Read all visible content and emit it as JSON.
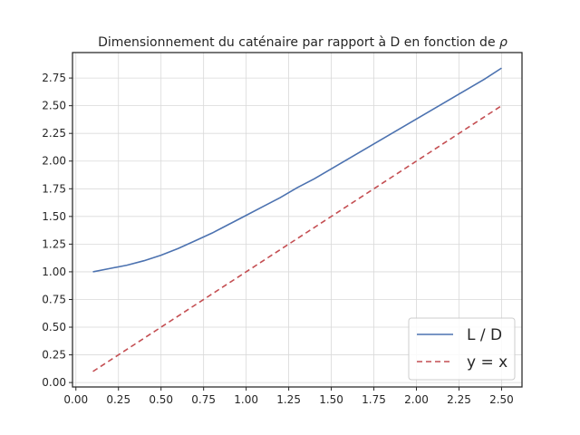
{
  "chart_data": {
    "type": "line",
    "title": "Dimensionnement du caténaire par rapport à D en fonction de ",
    "title_symbol": "ρ",
    "xlabel": "",
    "ylabel": "",
    "xlim": [
      -0.02,
      2.62
    ],
    "ylim": [
      -0.04,
      2.98
    ],
    "xticks": [
      0.0,
      0.25,
      0.5,
      0.75,
      1.0,
      1.25,
      1.5,
      1.75,
      2.0,
      2.25,
      2.5
    ],
    "xtick_labels": [
      "0.00",
      "0.25",
      "0.50",
      "0.75",
      "1.00",
      "1.25",
      "1.50",
      "1.75",
      "2.00",
      "2.25",
      "2.50"
    ],
    "yticks": [
      0.0,
      0.25,
      0.5,
      0.75,
      1.0,
      1.25,
      1.5,
      1.75,
      2.0,
      2.25,
      2.5,
      2.75
    ],
    "ytick_labels": [
      "0.00",
      "0.25",
      "0.50",
      "0.75",
      "1.00",
      "1.25",
      "1.50",
      "1.75",
      "2.00",
      "2.25",
      "2.50",
      "2.75"
    ],
    "grid": true,
    "legend_position": "lower-right",
    "series": [
      {
        "name": "L / D",
        "color": "#4c72b0",
        "style": "solid",
        "x": [
          0.1,
          0.2,
          0.3,
          0.4,
          0.5,
          0.6,
          0.7,
          0.8,
          0.9,
          1.0,
          1.1,
          1.2,
          1.3,
          1.4,
          1.5,
          1.6,
          1.7,
          1.8,
          1.9,
          2.0,
          2.1,
          2.2,
          2.3,
          2.4,
          2.5
        ],
        "y": [
          1.0,
          1.03,
          1.06,
          1.1,
          1.15,
          1.21,
          1.28,
          1.35,
          1.43,
          1.51,
          1.59,
          1.67,
          1.76,
          1.84,
          1.93,
          2.02,
          2.11,
          2.2,
          2.29,
          2.38,
          2.47,
          2.56,
          2.65,
          2.74,
          2.84
        ]
      },
      {
        "name": "y = x",
        "color": "#c44e52",
        "style": "dashed",
        "x": [
          0.1,
          2.5
        ],
        "y": [
          0.1,
          2.5
        ]
      }
    ]
  }
}
